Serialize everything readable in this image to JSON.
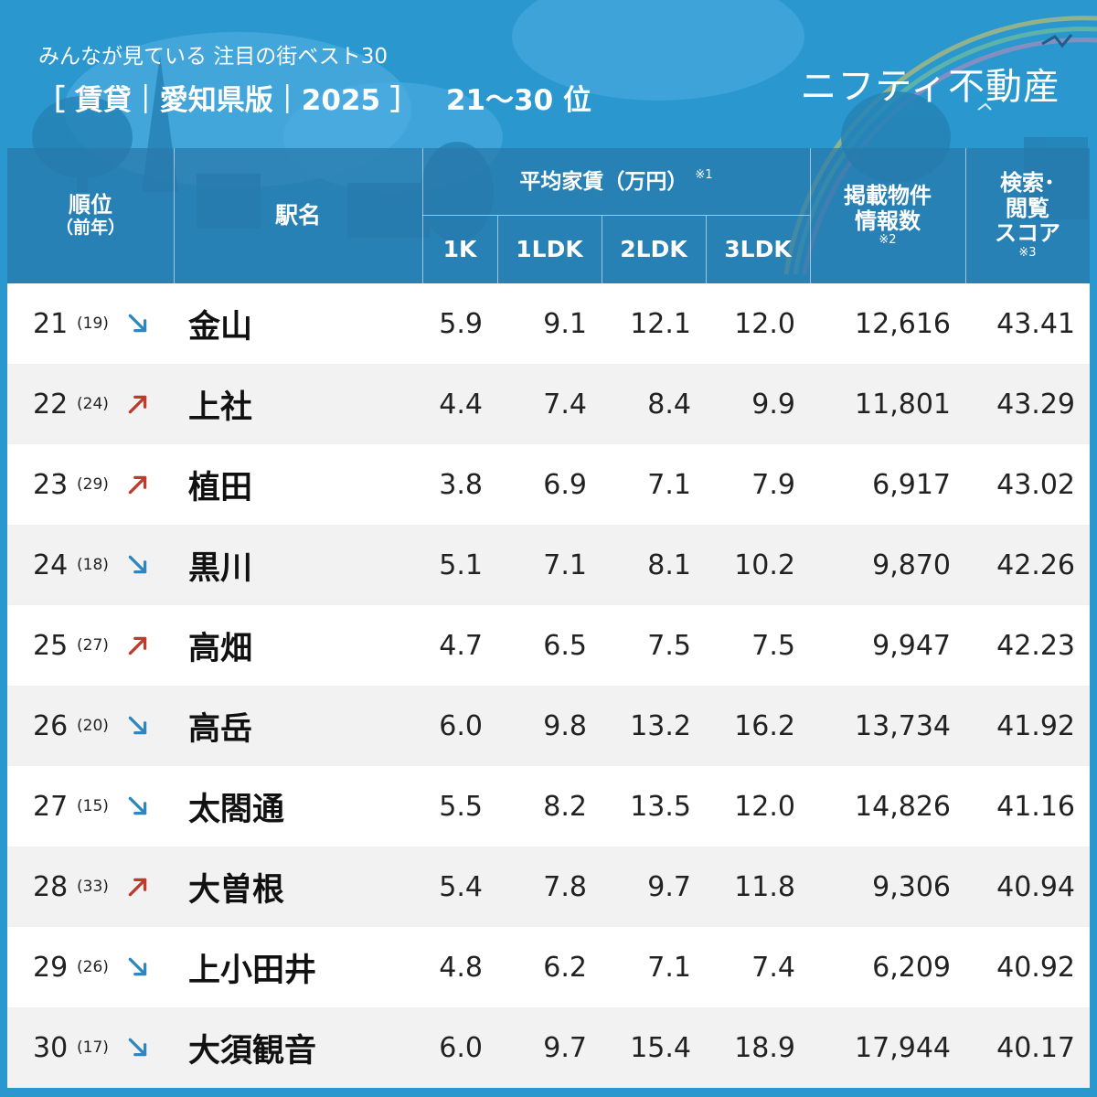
{
  "header": {
    "subtitle": "みんなが見ている 注目の街ベスト30",
    "title": "［ 賃貸｜愛知県版｜2025 ］",
    "range": "21〜30 位",
    "brand": "ニフティ不動産"
  },
  "columns": {
    "rank": "順位",
    "rank_prev": "（前年）",
    "station": "駅名",
    "rent_group": "平均家賃（万円）",
    "rent_note": "※1",
    "k1": "1K",
    "ldk1": "1LDK",
    "ldk2": "2LDK",
    "ldk3": "3LDK",
    "listings_line1": "掲載物件",
    "listings_line2": "情報数",
    "listings_note": "※2",
    "score_line1": "検索･",
    "score_line2": "閲覧",
    "score_line3": "スコア",
    "score_note": "※3"
  },
  "colors": {
    "up": "#c0392b",
    "down": "#2e86c1",
    "header_bg": "#2878aa",
    "page_bg": "#2a97cf"
  },
  "rows": [
    {
      "rank": "21",
      "prev": "(19)",
      "trend": "down",
      "station": "金山",
      "k1": "5.9",
      "ldk1": "9.1",
      "ldk2": "12.1",
      "ldk3": "12.0",
      "listings": "12,616",
      "score": "43.41"
    },
    {
      "rank": "22",
      "prev": "(24)",
      "trend": "up",
      "station": "上社",
      "k1": "4.4",
      "ldk1": "7.4",
      "ldk2": "8.4",
      "ldk3": "9.9",
      "listings": "11,801",
      "score": "43.29"
    },
    {
      "rank": "23",
      "prev": "(29)",
      "trend": "up",
      "station": "植田",
      "k1": "3.8",
      "ldk1": "6.9",
      "ldk2": "7.1",
      "ldk3": "7.9",
      "listings": "6,917",
      "score": "43.02"
    },
    {
      "rank": "24",
      "prev": "(18)",
      "trend": "down",
      "station": "黒川",
      "k1": "5.1",
      "ldk1": "7.1",
      "ldk2": "8.1",
      "ldk3": "10.2",
      "listings": "9,870",
      "score": "42.26"
    },
    {
      "rank": "25",
      "prev": "(27)",
      "trend": "up",
      "station": "高畑",
      "k1": "4.7",
      "ldk1": "6.5",
      "ldk2": "7.5",
      "ldk3": "7.5",
      "listings": "9,947",
      "score": "42.23"
    },
    {
      "rank": "26",
      "prev": "(20)",
      "trend": "down",
      "station": "高岳",
      "k1": "6.0",
      "ldk1": "9.8",
      "ldk2": "13.2",
      "ldk3": "16.2",
      "listings": "13,734",
      "score": "41.92"
    },
    {
      "rank": "27",
      "prev": "(15)",
      "trend": "down",
      "station": "太閤通",
      "k1": "5.5",
      "ldk1": "8.2",
      "ldk2": "13.5",
      "ldk3": "12.0",
      "listings": "14,826",
      "score": "41.16"
    },
    {
      "rank": "28",
      "prev": "(33)",
      "trend": "up",
      "station": "大曽根",
      "k1": "5.4",
      "ldk1": "7.8",
      "ldk2": "9.7",
      "ldk3": "11.8",
      "listings": "9,306",
      "score": "40.94"
    },
    {
      "rank": "29",
      "prev": "(26)",
      "trend": "down",
      "station": "上小田井",
      "k1": "4.8",
      "ldk1": "6.2",
      "ldk2": "7.1",
      "ldk3": "7.4",
      "listings": "6,209",
      "score": "40.92"
    },
    {
      "rank": "30",
      "prev": "(17)",
      "trend": "down",
      "station": "大須観音",
      "k1": "6.0",
      "ldk1": "9.7",
      "ldk2": "15.4",
      "ldk3": "18.9",
      "listings": "17,944",
      "score": "40.17"
    }
  ]
}
